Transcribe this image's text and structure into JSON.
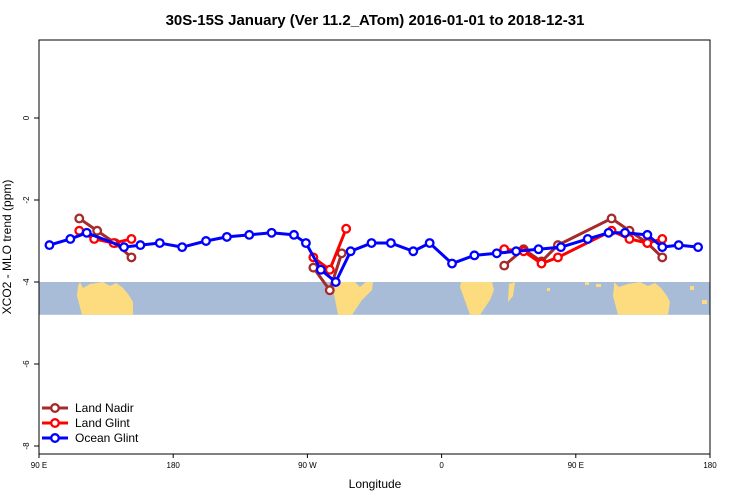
{
  "chart_data": {
    "type": "line",
    "title": "30S-15S January (Ver 11.2_ATom)   2016-01-01 to 2018-12-31",
    "xlabel": "Longitude",
    "ylabel": "XCO2 - MLO trend (ppm)",
    "xlim": [
      90,
      540
    ],
    "ylim": [
      -8,
      2
    ],
    "x_ticks": [
      90,
      180,
      270,
      360,
      450,
      540
    ],
    "x_tick_labels": [
      "90 E",
      "180",
      "90 W",
      "0",
      "90 E",
      "180"
    ],
    "y_ticks": [
      0,
      -2,
      -4,
      -6,
      -8
    ],
    "y_tick_labels": [
      "0",
      "-2",
      "-4",
      "-6",
      "-8"
    ],
    "grid": false,
    "legend_position": "bottom-left",
    "series": [
      {
        "name": "Land Nadir",
        "color": "#a52a2a",
        "x": [
          117,
          129,
          141,
          152,
          274,
          285,
          293,
          402,
          415,
          427,
          438,
          474,
          486,
          498,
          508
        ],
        "y": [
          -2.45,
          -2.75,
          -3.05,
          -3.4,
          -3.65,
          -4.2,
          -3.3,
          -3.6,
          -3.2,
          -3.5,
          -3.1,
          -2.45,
          -2.75,
          -3.05,
          -3.4
        ]
      },
      {
        "name": "Land Glint",
        "color": "#ff0000",
        "x": [
          117,
          127,
          140,
          152,
          274,
          285,
          296,
          402,
          415,
          427,
          438,
          474,
          486,
          498,
          508
        ],
        "y": [
          -2.75,
          -2.95,
          -3.05,
          -2.95,
          -3.4,
          -3.7,
          -2.7,
          -3.2,
          -3.25,
          -3.55,
          -3.4,
          -2.75,
          -2.95,
          -3.05,
          -2.95
        ]
      },
      {
        "name": "Ocean Glint",
        "color": "#0000ff",
        "x": [
          97,
          111,
          122,
          147,
          158,
          171,
          186,
          202,
          216,
          231,
          246,
          261,
          269,
          279,
          289,
          299,
          313,
          326,
          341,
          352,
          367,
          382,
          397,
          410,
          425,
          440,
          458,
          472,
          483,
          498,
          508,
          519,
          532
        ],
        "y": [
          -3.1,
          -2.95,
          -2.8,
          -3.15,
          -3.1,
          -3.05,
          -3.15,
          -3.0,
          -2.9,
          -2.85,
          -2.8,
          -2.85,
          -3.05,
          -3.7,
          -4.0,
          -3.25,
          -3.05,
          -3.05,
          -3.25,
          -3.05,
          -3.55,
          -3.35,
          -3.3,
          -3.25,
          -3.2,
          -3.15,
          -2.95,
          -2.8,
          -2.8,
          -2.85,
          -3.15,
          -3.1,
          -3.15
        ]
      }
    ],
    "annotations": []
  },
  "background": {
    "map_band_color": "#a8bcd8",
    "land_color": "#fddc7f",
    "map_band_ylim": [
      -4.0,
      -4.8
    ]
  }
}
